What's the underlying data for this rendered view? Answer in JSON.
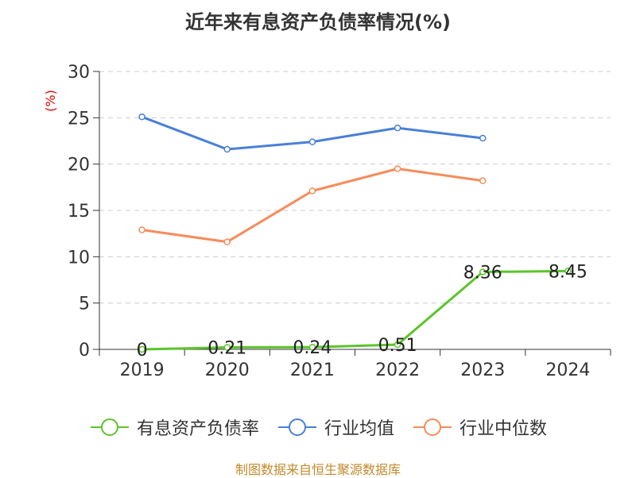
{
  "chart_data": {
    "type": "line",
    "title": "近年来有息资产负债率情况(%)",
    "ylabel": "(%)",
    "xlabel": "",
    "categories": [
      "2019",
      "2020",
      "2021",
      "2022",
      "2023",
      "2024"
    ],
    "ylim": [
      0,
      30
    ],
    "yticks": [
      "0",
      "5",
      "10",
      "15",
      "20",
      "25",
      "30"
    ],
    "grid": true,
    "legend_position": "bottom",
    "series": [
      {
        "name": "有息资产负债率",
        "color": "#5cc42a",
        "values": [
          0,
          0.21,
          0.24,
          0.51,
          8.36,
          8.45
        ],
        "labels": [
          "0",
          "0.21",
          "0.24",
          "0.51",
          "8.36",
          "8.45"
        ]
      },
      {
        "name": "行业均值",
        "color": "#4a7fd8",
        "values": [
          25.1,
          21.6,
          22.4,
          23.9,
          22.8,
          null
        ]
      },
      {
        "name": "行业中位数",
        "color": "#f58c5a",
        "values": [
          12.9,
          11.6,
          17.1,
          19.5,
          18.2,
          null
        ]
      }
    ]
  },
  "source": "制图数据来自恒生聚源数据库"
}
